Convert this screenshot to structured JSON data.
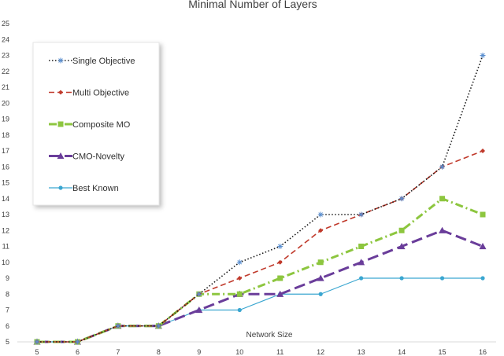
{
  "chart_data": {
    "type": "line",
    "title": "Minimal Number of Layers",
    "xlabel": "Network Size",
    "ylabel": "",
    "x": [
      5,
      6,
      7,
      8,
      9,
      10,
      11,
      12,
      13,
      14,
      15,
      16
    ],
    "ylim": [
      5,
      25
    ],
    "yticks": [
      5,
      6,
      7,
      8,
      9,
      10,
      11,
      12,
      13,
      14,
      15,
      16,
      17,
      18,
      19,
      20,
      21,
      22,
      23,
      24,
      25
    ],
    "grid": false,
    "legend_position": "top-left",
    "series": [
      {
        "name": "Single Objective",
        "color": "#1a1a1a",
        "dash": "dotted",
        "marker": "star",
        "values": [
          5,
          5,
          6,
          6,
          8,
          10,
          11,
          13,
          13,
          14,
          16,
          23
        ]
      },
      {
        "name": "Multi Objective",
        "color": "#c0392b",
        "dash": "dashed",
        "marker": "diamond",
        "values": [
          5,
          5,
          6,
          6,
          8,
          9,
          10,
          12,
          13,
          14,
          16,
          17
        ]
      },
      {
        "name": "Composite MO",
        "color": "#8dc63f",
        "dash": "dashdot",
        "marker": "square",
        "values": [
          5,
          5,
          6,
          6,
          8,
          8,
          9,
          10,
          11,
          12,
          14,
          13
        ]
      },
      {
        "name": "CMO-Novelty",
        "color": "#6a3d9a",
        "dash": "longdash",
        "marker": "triangle",
        "values": [
          5,
          5,
          6,
          6,
          7,
          8,
          8,
          9,
          10,
          11,
          12,
          11
        ]
      },
      {
        "name": "Best Known",
        "color": "#3aa6d0",
        "dash": "solid",
        "marker": "circle",
        "values": [
          5,
          5,
          6,
          6,
          7,
          7,
          8,
          8,
          9,
          9,
          9,
          9
        ]
      }
    ]
  }
}
